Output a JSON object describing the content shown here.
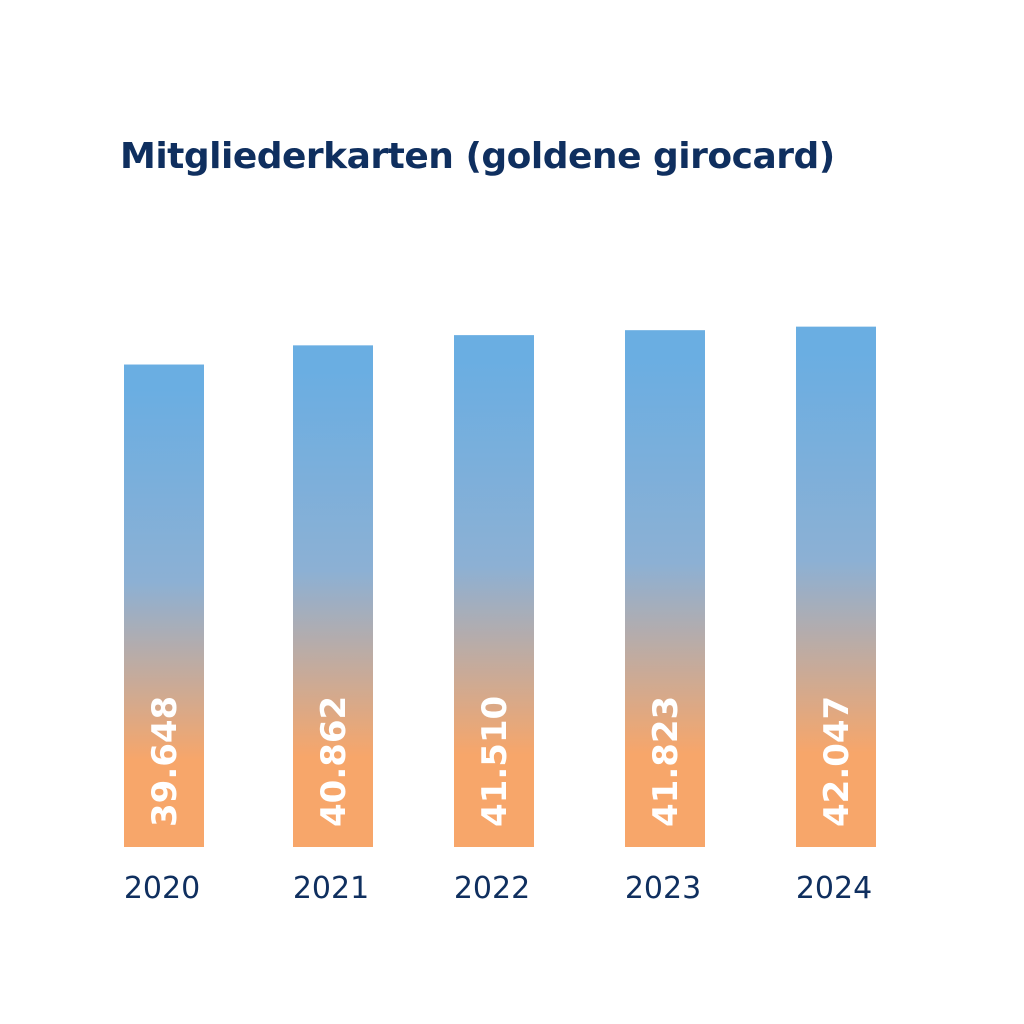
{
  "chart_data": {
    "type": "bar",
    "title": "Mitgliederkarten (goldene girocard)",
    "categories": [
      "2020",
      "2021",
      "2022",
      "2023",
      "2024"
    ],
    "values": [
      39648,
      40862,
      41510,
      41823,
      42047
    ],
    "data_labels": [
      "39.648",
      "40.862",
      "41.510",
      "41.823",
      "42.047"
    ],
    "xlabel": "",
    "ylabel": "",
    "ylim": [
      9100,
      43000
    ],
    "grid": false,
    "legend": "none",
    "colors": {
      "bar_top": "#6aaee2",
      "bar_bottom": "#f7a66a",
      "title": "#0f2f5f",
      "label": "#0f2f5f",
      "data_label": "#ffffff"
    }
  }
}
